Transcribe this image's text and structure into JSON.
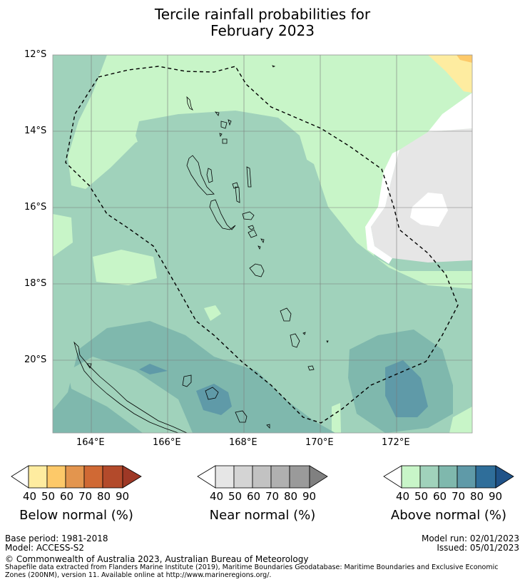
{
  "title": {
    "line1": "Tercile rainfall probabilities for",
    "line2": "February 2023"
  },
  "map": {
    "lat_labels": [
      "12°S",
      "14°S",
      "16°S",
      "18°S",
      "20°S"
    ],
    "lon_labels": [
      "164°E",
      "166°E",
      "168°E",
      "170°E",
      "172°E"
    ],
    "eez_boundary": "dashed",
    "layers": [
      "near-normal-gray",
      "above-normal-50",
      "above-normal-60",
      "above-normal-70",
      "above-normal-80",
      "below-normal-40",
      "below-normal-50"
    ]
  },
  "colorbars": [
    {
      "label": "Below normal (%)",
      "ticks": [
        "40",
        "50",
        "60",
        "70",
        "80",
        "90"
      ],
      "colors": [
        "#ffffff",
        "#feeca0",
        "#fdc969",
        "#e3954e",
        "#d06934",
        "#b34a2b",
        "#9e3826"
      ]
    },
    {
      "label": "Near normal (%)",
      "ticks": [
        "40",
        "50",
        "60",
        "70",
        "80",
        "90"
      ],
      "colors": [
        "#ffffff",
        "#e6e6e6",
        "#d4d4d4",
        "#c2c2c2",
        "#b0b0b0",
        "#9a9a9a",
        "#808080"
      ]
    },
    {
      "label": "Above normal (%)",
      "ticks": [
        "40",
        "50",
        "60",
        "70",
        "80",
        "90"
      ],
      "colors": [
        "#ffffff",
        "#c8f5c8",
        "#a0d2bb",
        "#7fb8ad",
        "#5f9aa8",
        "#2f6e9a",
        "#1f5288"
      ]
    }
  ],
  "footer": {
    "base_period": "Base period: 1981-2018",
    "model": "Model: ACCESS-S2",
    "model_run": "Model run: 02/01/2023",
    "issued": "Issued: 05/01/2023",
    "copyright": "© Commonwealth of Australia 2023, Australian Bureau of Meteorology",
    "shapefile_note": "Shapefile data extracted from Flanders Marine Institute (2019), Maritime Boundaries Geodatabase: Maritime Boundaries and Exclusive Economic Zones (200NM), version 11. Available online at http://www.marineregions.org/."
  }
}
